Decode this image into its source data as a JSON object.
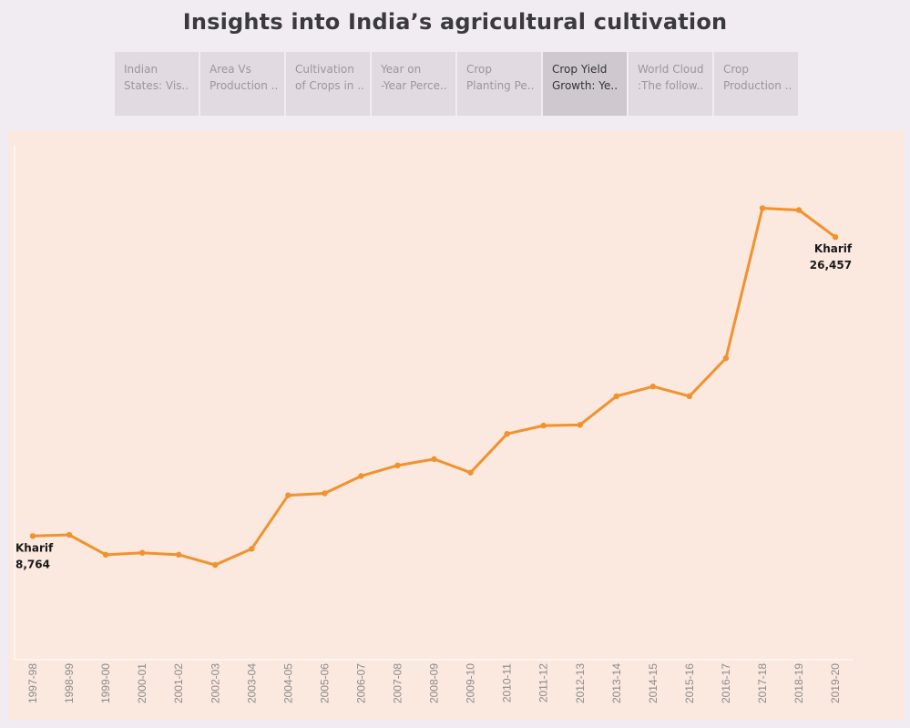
{
  "page": {
    "title": "Insights into India’s agricultural cultivation"
  },
  "tabs": [
    {
      "line1": "Indian",
      "line2": "States: Vis..",
      "active": false
    },
    {
      "line1": "Area Vs",
      "line2": "Production ..",
      "active": false
    },
    {
      "line1": "Cultivation",
      "line2": "of Crops in ..",
      "active": false
    },
    {
      "line1": "Year on",
      "line2": "-Year Perce..",
      "active": false
    },
    {
      "line1": "Crop",
      "line2": "Planting Pe..",
      "active": false
    },
    {
      "line1": "Crop Yield",
      "line2": "Growth: Ye..",
      "active": true
    },
    {
      "line1": "World Cloud",
      "line2": ":The follow..",
      "active": false
    },
    {
      "line1": "Crop",
      "line2": "Production ..",
      "active": false
    }
  ],
  "chart_data": {
    "type": "line",
    "title": "",
    "xlabel": "",
    "ylabel": "",
    "grid": false,
    "line_color": "#f0922e",
    "categories": [
      "1997-98",
      "1998-99",
      "1999-00",
      "2000-01",
      "2001-02",
      "2002-03",
      "2003-04",
      "2004-05",
      "2005-06",
      "2006-07",
      "2007-08",
      "2008-09",
      "2009-10",
      "2010-11",
      "2011-12",
      "2012-13",
      "2013-14",
      "2014-15",
      "2015-16",
      "2016-17",
      "2017-18",
      "2018-19",
      "2019-20"
    ],
    "series": [
      {
        "name": "Kharif",
        "values": [
          8764,
          8832,
          7656,
          7770,
          7656,
          7052,
          8008,
          11176,
          11290,
          12314,
          12940,
          13318,
          12520,
          14810,
          15300,
          15340,
          17040,
          17612,
          17040,
          19290,
          28170,
          28056,
          26457
        ]
      }
    ],
    "ylim": [
      1500,
      31700
    ],
    "annotations": [
      {
        "index": 0,
        "name": "Kharif",
        "value": "8,764"
      },
      {
        "index": 22,
        "name": "Kharif",
        "value": "26,457"
      }
    ]
  }
}
